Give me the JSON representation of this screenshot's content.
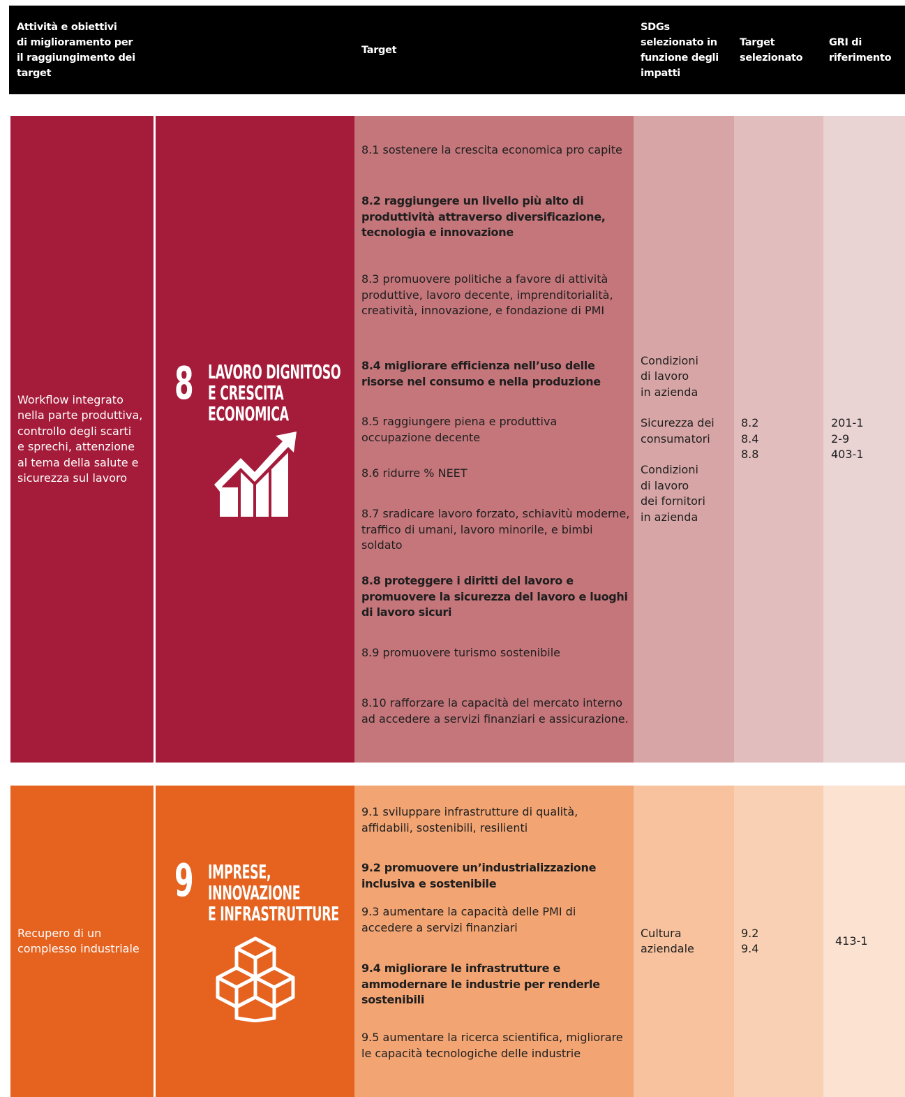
{
  "header": {
    "columns": [
      [
        "Attività e obiettivi",
        "di miglioramento per",
        "il raggiungimento dei",
        "target"
      ],
      [
        "Target"
      ],
      [
        "SDGs",
        "selezionato in",
        "funzione degli",
        "impatti"
      ],
      [
        "Target",
        "selezionato"
      ],
      [
        "GRI di",
        "riferimento"
      ]
    ]
  },
  "sections": [
    {
      "activity": [
        "Workflow integrato",
        "nella parte produttiva,",
        "controllo degli scarti",
        "e sprechi, attenzione",
        "al tema della salute e",
        "sicurezza sul lavoro"
      ],
      "sdg": {
        "number": "8",
        "title": [
          "LAVORO DIGNITOSO",
          "E CRESCITA",
          "ECONOMICA"
        ]
      },
      "targets": [
        {
          "text": "8.1 sostenere la crescita economica pro capite",
          "bold": false
        },
        {
          "text": "8.2 raggiungere un livello più alto di produttività attraverso diversificazione, tecnologia e innovazione",
          "bold": true
        },
        {
          "text": "8.3 promuovere politiche a favore di attività produttive, lavoro decente, imprenditorialità, creatività, innovazione, e fondazione di PMI",
          "bold": false
        },
        {
          "text": "8.4 migliorare efficienza nell’uso delle risorse nel consumo e nella produzione",
          "bold": true
        },
        {
          "text": "8.5 raggiungere piena e produttiva occupazione decente",
          "bold": false
        },
        {
          "text": "8.6 ridurre % NEET",
          "bold": false
        },
        {
          "text": "8.7 sradicare lavoro forzato, schiavitù moderne, traffico di umani, lavoro minorile, e bimbi soldato",
          "bold": false
        },
        {
          "text": "8.8 proteggere i diritti del lavoro e promuovere la sicurezza del lavoro e luoghi di lavoro sicuri",
          "bold": true
        },
        {
          "text": "8.9 promuovere turismo sostenibile",
          "bold": false
        },
        {
          "text": "8.10 rafforzare la capacità del mercato interno ad accedere a servizi finanziari e assicurazione.",
          "bold": false
        }
      ],
      "impacts": [
        [
          "Condizioni",
          "di lavoro",
          "in azienda"
        ],
        [
          "Sicurezza dei",
          "consumatori"
        ],
        [
          "Condizioni",
          "di lavoro",
          "dei fornitori",
          "in azienda"
        ]
      ],
      "selected": [
        "8.2",
        "8.4",
        "8.8"
      ],
      "gri": [
        "201-1",
        "2-9",
        "403-1"
      ]
    },
    {
      "activity": [
        "Recupero di un",
        "complesso industriale"
      ],
      "sdg": {
        "number": "9",
        "title": [
          "IMPRESE,",
          "INNOVAZIONE",
          "E INFRASTRUTTURE"
        ]
      },
      "targets": [
        {
          "text": "9.1 sviluppare infrastrutture di qualità, affidabili, sostenibili, resilienti",
          "bold": false
        },
        {
          "text": "9.2 promuovere un’industrializzazione inclusiva e sostenibile",
          "bold": true
        },
        {
          "text": "9.3 aumentare la capacità delle PMI di accedere a servizi finanziari",
          "bold": false
        },
        {
          "text": "9.4 migliorare le infrastrutture e ammodernare le industrie per renderle sostenibili",
          "bold": true
        },
        {
          "text": "9.5 aumentare la ricerca scientifica, migliorare le capacità tecnologiche delle industrie",
          "bold": false
        }
      ],
      "impacts": [
        [
          "Cultura",
          "aziendale"
        ]
      ],
      "selected": [
        "9.2",
        "9.4"
      ],
      "gri": [
        "413-1"
      ]
    }
  ]
}
